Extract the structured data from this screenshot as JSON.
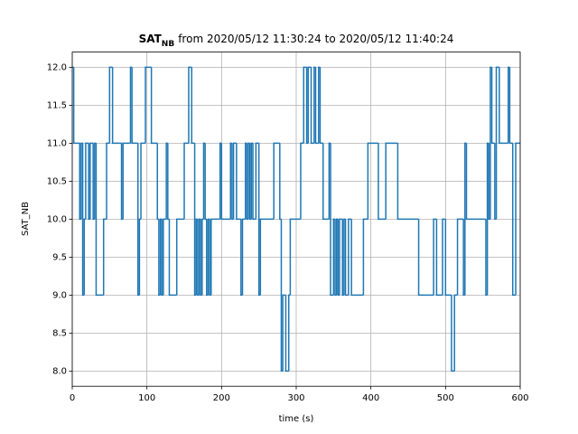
{
  "chart_data": {
    "type": "step",
    "title": {
      "main": "SAT",
      "sub": "NB",
      "rest": "from 2020/05/12 11:30:24 to 2020/05/12 11:40:24"
    },
    "xlabel": "time (s)",
    "ylabel": "SAT_NB",
    "xlim": [
      0,
      600
    ],
    "xticks": [
      0,
      100,
      200,
      300,
      400,
      500,
      600
    ],
    "ylim": [
      7.8,
      12.2
    ],
    "yticks": [
      {
        "value": 8,
        "label": "8.0"
      },
      {
        "value": 8.5,
        "label": "8.5"
      },
      {
        "value": 9,
        "label": "9.0"
      },
      {
        "value": 9.5,
        "label": "9.5"
      },
      {
        "value": 10,
        "label": "10.0"
      },
      {
        "value": 10.5,
        "label": "10.5"
      },
      {
        "value": 11,
        "label": "11.0"
      },
      {
        "value": 11.5,
        "label": "11.5"
      },
      {
        "value": 12,
        "label": "12.0"
      }
    ],
    "grid": true,
    "color": "#1f77b4",
    "x": [
      0,
      2,
      10,
      12,
      14,
      16,
      18,
      22,
      24,
      28,
      30,
      32,
      42,
      46,
      50,
      54,
      66,
      68,
      78,
      80,
      88,
      90,
      92,
      98,
      106,
      114,
      116,
      118,
      120,
      122,
      126,
      128,
      130,
      140,
      150,
      156,
      160,
      164,
      166,
      168,
      170,
      172,
      174,
      176,
      178,
      180,
      182,
      184,
      186,
      198,
      200,
      212,
      214,
      216,
      220,
      226,
      228,
      232,
      234,
      236,
      238,
      240,
      242,
      246,
      250,
      252,
      270,
      278,
      280,
      282,
      286,
      290,
      292,
      306,
      310,
      314,
      316,
      320,
      324,
      326,
      330,
      332,
      336,
      344,
      346,
      350,
      352,
      354,
      356,
      358,
      362,
      364,
      366,
      370,
      374,
      390,
      396,
      410,
      420,
      436,
      464,
      484,
      488,
      496,
      500,
      508,
      512,
      516,
      524,
      526,
      528,
      554,
      556,
      558,
      560,
      562,
      566,
      568,
      572,
      584,
      586,
      590,
      594,
      600
    ],
    "values": [
      12,
      11,
      10,
      11,
      9,
      10,
      11,
      10,
      11,
      10,
      11,
      9,
      10,
      11,
      12,
      11,
      10,
      11,
      12,
      11,
      9,
      10,
      11,
      12,
      11,
      10,
      9,
      10,
      9,
      10,
      11,
      10,
      9,
      10,
      11,
      12,
      11,
      9,
      10,
      9,
      10,
      9,
      10,
      11,
      10,
      9,
      10,
      9,
      10,
      11,
      10,
      11,
      10,
      11,
      10,
      9,
      10,
      11,
      10,
      11,
      10,
      11,
      10,
      11,
      9,
      10,
      11,
      10,
      8,
      9,
      8,
      9,
      10,
      11,
      12,
      11,
      12,
      11,
      12,
      11,
      12,
      11,
      10,
      11,
      9,
      10,
      9,
      10,
      9,
      10,
      9,
      10,
      9,
      10,
      9,
      10,
      11,
      10,
      11,
      10,
      9,
      10,
      9,
      10,
      9,
      8,
      9,
      10,
      9,
      11,
      10,
      9,
      11,
      10,
      12,
      11,
      10,
      12,
      11,
      12,
      11,
      9,
      11,
      11
    ]
  }
}
